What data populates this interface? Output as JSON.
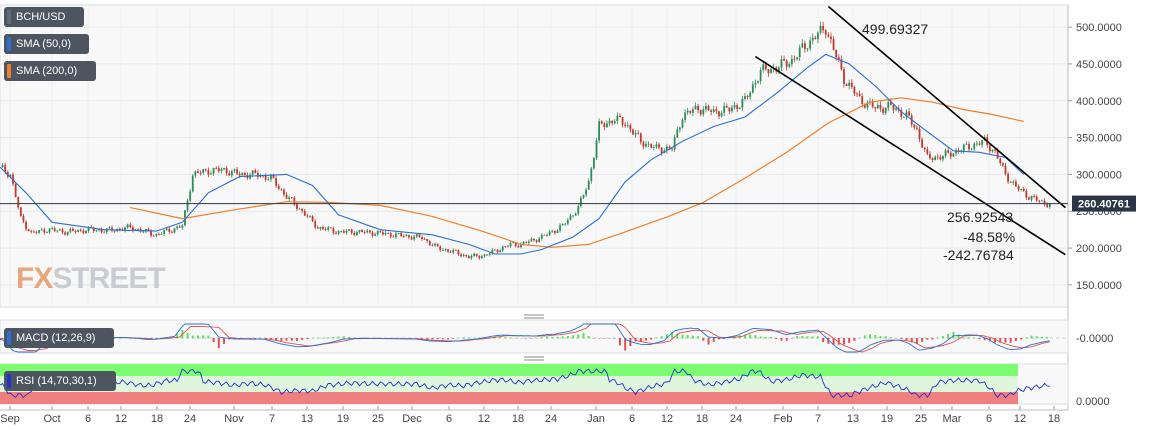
{
  "colors": {
    "price_candle_up": "#2e8b57",
    "price_candle_down": "#c0392b",
    "sma50": "#2c6fd1",
    "sma200": "#f07f2a",
    "rsi_overbought": "#7cfc70",
    "rsi_oversold": "#f08080",
    "rsi_line": "#2233cc",
    "channel": "#000000",
    "label_bg": "#4d5560",
    "price_badge": "#2b3545"
  },
  "legend": {
    "symbol": "BCH/USD",
    "sma50": "SMA (50,0)",
    "sma200": "SMA (200,0)",
    "macd": "MACD (12,26,9)",
    "rsi": "RSI (14,70,30,1)"
  },
  "watermark": {
    "left": "FX",
    "right": "STREET"
  },
  "annotations": {
    "peak": "499.69327",
    "current_price": "260.40761",
    "low": "256.92543",
    "pct": "-48.58%",
    "change": "-242.76784"
  },
  "chart_data": [
    {
      "type": "line",
      "title": "",
      "x_ticks": [
        "Sep",
        "Oct",
        "6",
        "12",
        "18",
        "24",
        "Nov",
        "7",
        "13",
        "19",
        "25",
        "Dec",
        "6",
        "12",
        "18",
        "24",
        "Jan",
        "6",
        "12",
        "18",
        "24",
        "Feb",
        "7",
        "13",
        "19",
        "25",
        "Mar",
        "6",
        "12",
        "18"
      ],
      "y_ticks": [
        "500.0000",
        "450.0000",
        "400.0000",
        "350.0000",
        "300.0000",
        "250.0000",
        "200.0000",
        "150.0000"
      ],
      "ylim": [
        120,
        530
      ],
      "series": [
        {
          "name": "BCH/USD",
          "points": [
            [
              0,
              310
            ],
            [
              4,
              300
            ],
            [
              8,
              240
            ],
            [
              12,
              220
            ],
            [
              18,
              225
            ],
            [
              26,
              222
            ],
            [
              34,
              225
            ],
            [
              42,
              224
            ],
            [
              50,
              228
            ],
            [
              60,
              218
            ],
            [
              70,
              230
            ],
            [
              74,
              300
            ],
            [
              80,
              305
            ],
            [
              86,
              306
            ],
            [
              92,
              300
            ],
            [
              98,
              300
            ],
            [
              104,
              295
            ],
            [
              110,
              270
            ],
            [
              116,
              250
            ],
            [
              122,
              228
            ],
            [
              130,
              222
            ],
            [
              138,
              222
            ],
            [
              146,
              220
            ],
            [
              154,
              217
            ],
            [
              162,
              214
            ],
            [
              168,
              200
            ],
            [
              174,
              195
            ],
            [
              180,
              188
            ],
            [
              186,
              190
            ],
            [
              190,
              196
            ],
            [
              196,
              205
            ],
            [
              200,
              205
            ],
            [
              208,
              215
            ],
            [
              216,
              230
            ],
            [
              222,
              255
            ],
            [
              226,
              290
            ],
            [
              230,
              365
            ],
            [
              236,
              375
            ],
            [
              240,
              370
            ],
            [
              246,
              345
            ],
            [
              252,
              335
            ],
            [
              258,
              335
            ],
            [
              262,
              380
            ],
            [
              268,
              390
            ],
            [
              274,
              385
            ],
            [
              280,
              388
            ],
            [
              286,
              400
            ],
            [
              292,
              440
            ],
            [
              298,
              445
            ],
            [
              304,
              455
            ],
            [
              310,
              478
            ],
            [
              314,
              490
            ],
            [
              317,
              499
            ],
            [
              320,
              470
            ],
            [
              324,
              430
            ],
            [
              330,
              402
            ],
            [
              336,
              390
            ],
            [
              342,
              392
            ],
            [
              348,
              380
            ],
            [
              352,
              360
            ],
            [
              356,
              322
            ],
            [
              362,
              325
            ],
            [
              366,
              330
            ],
            [
              372,
              338
            ],
            [
              378,
              345
            ],
            [
              382,
              330
            ],
            [
              386,
              300
            ],
            [
              390,
              283
            ],
            [
              395,
              270
            ],
            [
              400,
              262
            ],
            [
              403,
              260
            ]
          ]
        },
        {
          "name": "SMA (50,0)",
          "points": [
            [
              0,
              310
            ],
            [
              10,
              275
            ],
            [
              20,
              235
            ],
            [
              40,
              225
            ],
            [
              60,
              223
            ],
            [
              70,
              235
            ],
            [
              80,
              275
            ],
            [
              92,
              297
            ],
            [
              110,
              300
            ],
            [
              120,
              285
            ],
            [
              130,
              245
            ],
            [
              146,
              225
            ],
            [
              166,
              218
            ],
            [
              180,
              205
            ],
            [
              190,
              192
            ],
            [
              200,
              192
            ],
            [
              208,
              198
            ],
            [
              220,
              215
            ],
            [
              230,
              240
            ],
            [
              240,
              290
            ],
            [
              250,
              320
            ],
            [
              262,
              345
            ],
            [
              274,
              365
            ],
            [
              286,
              378
            ],
            [
              298,
              410
            ],
            [
              310,
              445
            ],
            [
              317,
              463
            ],
            [
              326,
              450
            ],
            [
              336,
              420
            ],
            [
              346,
              385
            ],
            [
              356,
              358
            ],
            [
              366,
              332
            ],
            [
              376,
              330
            ],
            [
              386,
              323
            ],
            [
              393,
              300
            ]
          ]
        },
        {
          "name": "SMA (200,0)",
          "points": [
            [
              50,
              255
            ],
            [
              70,
              240
            ],
            [
              90,
              252
            ],
            [
              110,
              263
            ],
            [
              126,
              262
            ],
            [
              146,
              258
            ],
            [
              166,
              243
            ],
            [
              186,
              222
            ],
            [
              200,
              205
            ],
            [
              212,
              201
            ],
            [
              226,
              205
            ],
            [
              240,
              222
            ],
            [
              256,
              242
            ],
            [
              270,
              262
            ],
            [
              286,
              295
            ],
            [
              302,
              330
            ],
            [
              318,
              370
            ],
            [
              334,
              398
            ],
            [
              346,
              404
            ],
            [
              358,
              398
            ],
            [
              370,
              388
            ],
            [
              380,
              382
            ],
            [
              393,
              372
            ]
          ]
        },
        {
          "name": "Upper channel",
          "points": [
            [
              318,
              528
            ],
            [
              409,
              255
            ]
          ]
        },
        {
          "name": "Lower channel",
          "points": [
            [
              290,
              460
            ],
            [
              409,
              191
            ]
          ]
        }
      ]
    },
    {
      "type": "area",
      "title": "MACD (12,26,9)",
      "y_ticks": [
        "-0.0000"
      ],
      "ylim": [
        -1,
        1
      ]
    },
    {
      "type": "area",
      "title": "RSI (14,70,30,1)",
      "y_ticks": [
        "0.0000"
      ],
      "ylim": [
        0,
        100
      ],
      "overbought": 70,
      "oversold": 30
    }
  ]
}
